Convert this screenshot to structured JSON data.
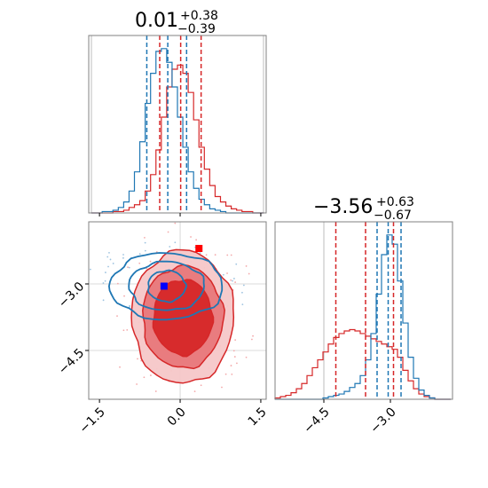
{
  "colors": {
    "red": "#d62728",
    "red_mid": "#e8777a",
    "red_light": "#f6c7c8",
    "blue": "#1f77b4",
    "blue_marker": "#0000ff",
    "red_marker": "#ff0000"
  },
  "chart_data": [
    {
      "type": "histogram",
      "panel": "top-left marginal",
      "title": {
        "base": "0.01",
        "plus": "+0.38",
        "minus": "−0.39"
      },
      "xlim": [
        -1.7,
        1.6
      ],
      "xlabel": "",
      "ylabel": "",
      "series": [
        {
          "color": "red",
          "style": "step",
          "bin_edges": [
            -1.65,
            -1.55,
            -1.45,
            -1.35,
            -1.25,
            -1.15,
            -1.05,
            -0.95,
            -0.85,
            -0.75,
            -0.65,
            -0.55,
            -0.45,
            -0.35,
            -0.25,
            -0.15,
            -0.05,
            0.05,
            0.15,
            0.25,
            0.35,
            0.45,
            0.55,
            0.65,
            0.75,
            0.85,
            0.95,
            1.05,
            1.15,
            1.25,
            1.35,
            1.45,
            1.55
          ],
          "counts": [
            0,
            0,
            0,
            0,
            1,
            1,
            2,
            4,
            6,
            9,
            16,
            28,
            46,
            70,
            92,
            105,
            108,
            102,
            88,
            68,
            48,
            32,
            20,
            12,
            8,
            5,
            3,
            2,
            1,
            1,
            0,
            0
          ]
        },
        {
          "color": "blue",
          "style": "step",
          "bin_edges": [
            -1.65,
            -1.55,
            -1.45,
            -1.35,
            -1.25,
            -1.15,
            -1.05,
            -0.95,
            -0.85,
            -0.75,
            -0.65,
            -0.55,
            -0.45,
            -0.35,
            -0.25,
            -0.15,
            -0.05,
            0.05,
            0.15,
            0.25,
            0.35,
            0.45,
            0.55,
            0.65,
            0.75,
            0.85,
            0.95,
            1.05,
            1.15,
            1.25,
            1.35,
            1.45,
            1.55
          ],
          "counts": [
            0,
            0,
            1,
            1,
            2,
            4,
            8,
            16,
            30,
            52,
            80,
            102,
            118,
            120,
            110,
            92,
            70,
            48,
            30,
            18,
            10,
            6,
            3,
            2,
            1,
            0,
            0,
            0,
            0,
            0,
            0,
            0
          ]
        }
      ],
      "quantile_lines": {
        "red": [
          -0.38,
          0.01,
          0.39
        ],
        "blue": [
          -0.62,
          -0.23,
          0.12
        ]
      },
      "xticks": [
        -1.5,
        0.0,
        1.5
      ],
      "truth_lines": [
        -1.65,
        1.55
      ]
    },
    {
      "type": "contour_scatter",
      "panel": "bottom-left joint",
      "xlim": [
        -1.7,
        1.6
      ],
      "ylim": [
        -5.6,
        -1.6
      ],
      "xticks": [
        -1.5,
        0.0,
        1.5
      ],
      "xtick_labels": [
        "−1.5",
        "0.0",
        "1.5"
      ],
      "yticks": [
        -4.5,
        -3.0
      ],
      "ytick_labels": [
        "−4.5",
        "−3.0"
      ],
      "gridlines": {
        "x": [
          0.0
        ],
        "y": [
          -3.0,
          -4.5
        ]
      },
      "red_contours": {
        "center": [
          0.05,
          -3.75
        ],
        "radii": [
          [
            0.55,
            0.85
          ],
          [
            0.75,
            1.15
          ],
          [
            0.95,
            1.5
          ]
        ]
      },
      "blue_contours": {
        "center": [
          -0.25,
          -3.05
        ],
        "radii": [
          [
            0.35,
            0.35
          ],
          [
            0.7,
            0.55
          ],
          [
            1.05,
            0.75
          ]
        ]
      },
      "markers": [
        {
          "color": "blue_marker",
          "x": -0.3,
          "y": -3.05
        },
        {
          "color": "red_marker",
          "x": 0.35,
          "y": -2.2
        }
      ]
    },
    {
      "type": "histogram",
      "panel": "bottom-right marginal",
      "title": {
        "base": "−3.56",
        "plus": "+0.63",
        "minus": "−0.67"
      },
      "xlim": [
        -5.6,
        -1.6
      ],
      "xlabel": "",
      "ylabel": "",
      "series": [
        {
          "color": "red",
          "style": "step",
          "bin_edges": [
            -5.6,
            -5.48,
            -5.36,
            -5.24,
            -5.12,
            -5.0,
            -4.88,
            -4.76,
            -4.64,
            -4.52,
            -4.4,
            -4.28,
            -4.16,
            -4.04,
            -3.92,
            -3.8,
            -3.68,
            -3.56,
            -3.44,
            -3.32,
            -3.2,
            -3.08,
            -2.96,
            -2.84,
            -2.72,
            -2.6,
            -2.48,
            -2.36,
            -2.24,
            -2.12,
            -2.0,
            -1.88,
            -1.76,
            -1.64
          ],
          "counts": [
            1,
            2,
            3,
            5,
            8,
            12,
            18,
            24,
            30,
            36,
            42,
            47,
            50,
            52,
            53,
            52,
            50,
            48,
            46,
            44,
            42,
            40,
            38,
            32,
            22,
            14,
            8,
            4,
            2,
            1,
            0,
            0,
            0
          ]
        },
        {
          "color": "blue",
          "style": "step",
          "bin_edges": [
            -5.6,
            -5.48,
            -5.36,
            -5.24,
            -5.12,
            -5.0,
            -4.88,
            -4.76,
            -4.64,
            -4.52,
            -4.4,
            -4.28,
            -4.16,
            -4.04,
            -3.92,
            -3.8,
            -3.68,
            -3.56,
            -3.44,
            -3.32,
            -3.2,
            -3.08,
            -2.96,
            -2.84,
            -2.72,
            -2.6,
            -2.48,
            -2.36,
            -2.24,
            -2.12,
            -2.0,
            -1.88,
            -1.76,
            -1.64
          ],
          "counts": [
            0,
            0,
            0,
            0,
            0,
            0,
            0,
            0,
            0,
            1,
            2,
            3,
            4,
            6,
            9,
            12,
            18,
            30,
            50,
            80,
            110,
            125,
            118,
            90,
            58,
            32,
            16,
            7,
            3,
            1,
            0,
            0,
            0
          ]
        }
      ],
      "quantile_lines": {
        "red": [
          -4.23,
          -3.56,
          -2.93
        ],
        "blue": [
          -3.3,
          -3.05,
          -2.76
        ]
      },
      "xticks": [
        -4.5,
        -3.0
      ],
      "xtick_labels": [
        "−4.5",
        "−3.0"
      ],
      "truth_lines": [
        -4.5
      ]
    }
  ]
}
